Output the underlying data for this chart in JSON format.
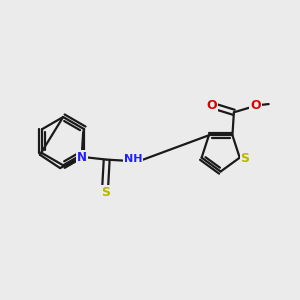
{
  "bg_color": "#ebebeb",
  "bond_color": "#1a1a1a",
  "N_color": "#2020ff",
  "S_color": "#b8b800",
  "O_color": "#dd0000",
  "C_color": "#1a1a1a",
  "lw": 1.6,
  "xlim": [
    0,
    10
  ],
  "ylim": [
    0,
    10
  ]
}
